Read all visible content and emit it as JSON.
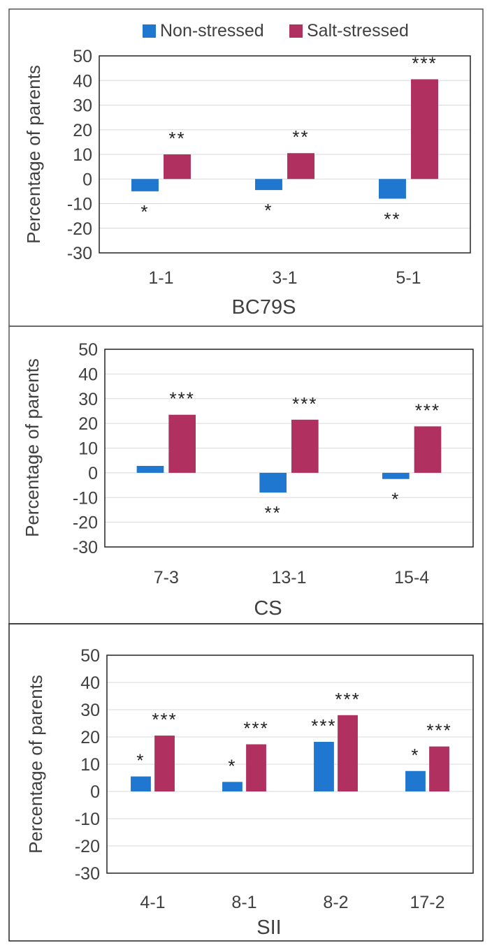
{
  "legend": {
    "position": "top-center",
    "items": [
      {
        "label": "Non-stressed",
        "color": "#1F77D0"
      },
      {
        "label": "Salt-stressed",
        "color": "#B03060"
      }
    ]
  },
  "chart_data": [
    {
      "type": "bar",
      "title": "",
      "xlabel": "BC79S",
      "ylabel": "Percentage of parents",
      "ylim": [
        -30,
        50
      ],
      "yticks": [
        -30,
        -20,
        -10,
        0,
        10,
        20,
        30,
        40,
        50
      ],
      "grid": true,
      "categories": [
        "1-1",
        "3-1",
        "5-1"
      ],
      "series": [
        {
          "name": "Non-stressed",
          "values": [
            -5,
            -4.5,
            -8
          ],
          "annotations": [
            "*",
            "*",
            "**"
          ]
        },
        {
          "name": "Salt-stressed",
          "values": [
            10,
            10.5,
            40.5
          ],
          "annotations": [
            "**",
            "**",
            "***"
          ]
        }
      ]
    },
    {
      "type": "bar",
      "title": "",
      "xlabel": "CS",
      "ylabel": "Percentage of parents",
      "ylim": [
        -30,
        50
      ],
      "yticks": [
        -30,
        -20,
        -10,
        0,
        10,
        20,
        30,
        40,
        50
      ],
      "grid": true,
      "categories": [
        "7-3",
        "13-1",
        "15-4"
      ],
      "series": [
        {
          "name": "Non-stressed",
          "values": [
            2.8,
            -8,
            -2.5
          ],
          "annotations": [
            "",
            "**",
            "*"
          ]
        },
        {
          "name": "Salt-stressed",
          "values": [
            23.5,
            21.5,
            18.8
          ],
          "annotations": [
            "***",
            "***",
            "***"
          ]
        }
      ]
    },
    {
      "type": "bar",
      "title": "",
      "xlabel": "SII",
      "ylabel": "Percentage of parents",
      "ylim": [
        -30,
        50
      ],
      "yticks": [
        -30,
        -20,
        -10,
        0,
        10,
        20,
        30,
        40,
        50
      ],
      "grid": true,
      "categories": [
        "4-1",
        "8-1",
        "8-2",
        "17-2"
      ],
      "series": [
        {
          "name": "Non-stressed",
          "values": [
            5.5,
            3.5,
            18.2,
            7.5
          ],
          "annotations": [
            "*",
            "*",
            "***",
            "*"
          ]
        },
        {
          "name": "Salt-stressed",
          "values": [
            20.5,
            17.3,
            28,
            16.5
          ],
          "annotations": [
            "***",
            "***",
            "***",
            "***"
          ]
        }
      ]
    }
  ]
}
